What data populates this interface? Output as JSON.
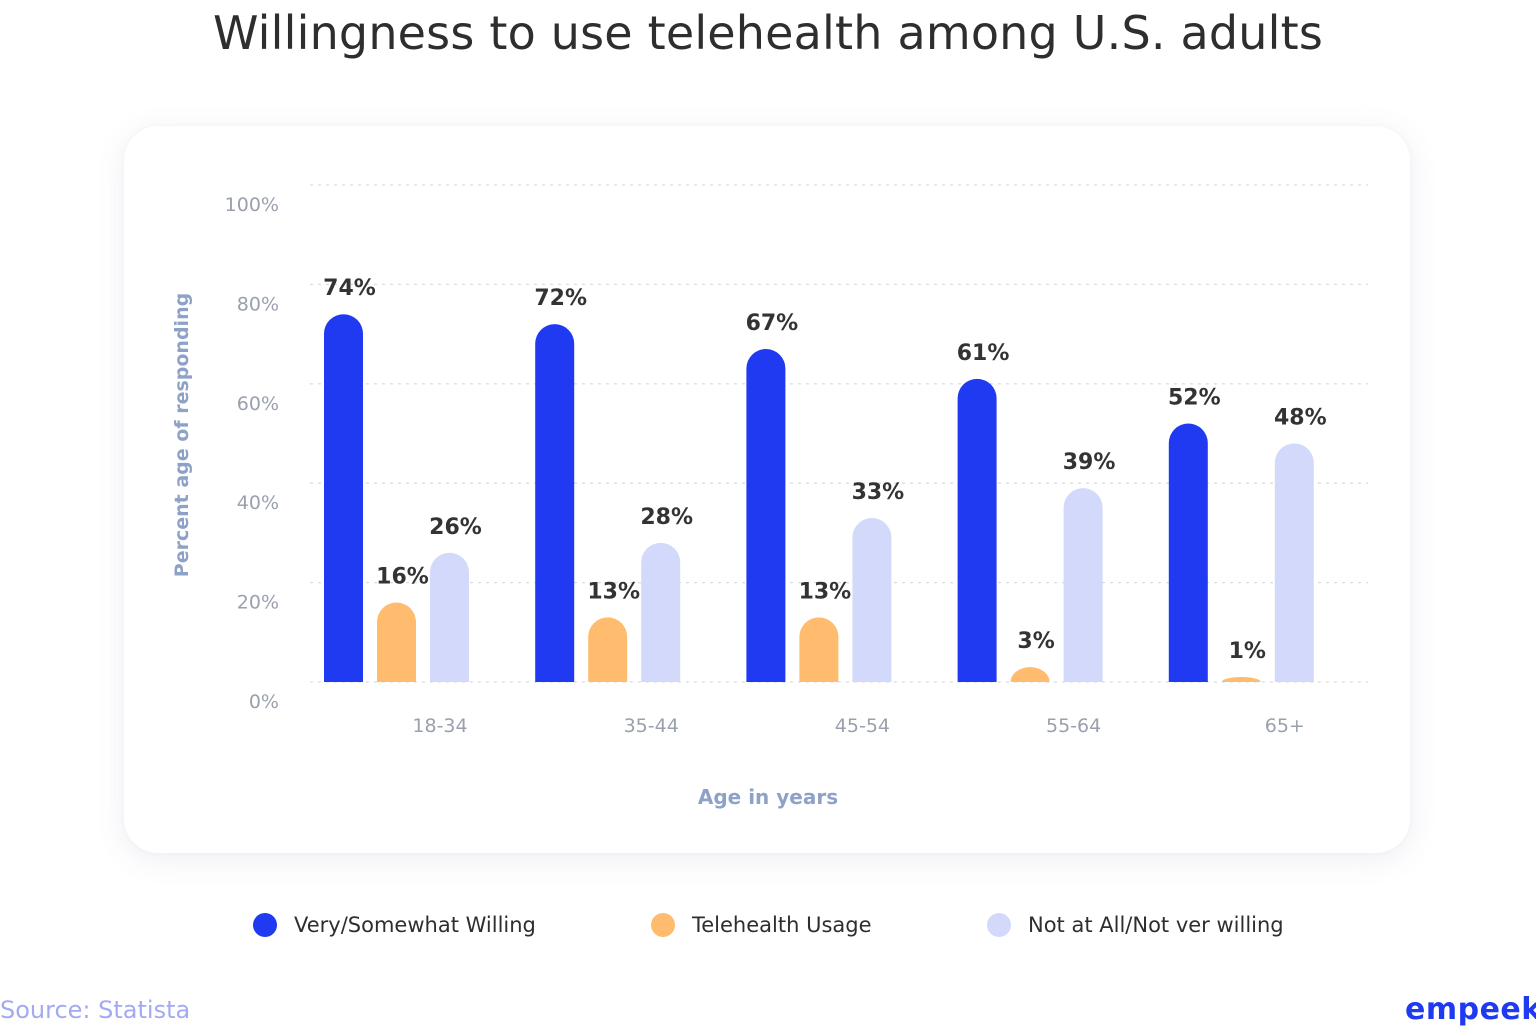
{
  "title": "Willingness to use telehealth among U.S. adults",
  "colors": {
    "willing": "#1f3af0",
    "usage": "#ffbb6e",
    "not_willing": "#d3d9fb",
    "axis_text": "#9aa0ad",
    "axis_title": "#8ea2c8",
    "value_label": "#333333"
  },
  "chart_data": {
    "type": "bar",
    "categories": [
      "18-34",
      "35-44",
      "45-54",
      "55-64",
      "65+"
    ],
    "series": [
      {
        "name": "Very/Somewhat Willing",
        "values": [
          74,
          72,
          67,
          61,
          52
        ],
        "labels": [
          "74%",
          "72%",
          "67%",
          "61%",
          "52%"
        ]
      },
      {
        "name": "Telehealth Usage",
        "values": [
          16,
          13,
          13,
          3,
          1
        ],
        "labels": [
          "16%",
          "13%",
          "13%",
          "3%",
          "1%"
        ]
      },
      {
        "name": "Not at All/Not ver willing",
        "values": [
          26,
          28,
          33,
          39,
          48
        ],
        "labels": [
          "26%",
          "28%",
          "33%",
          "39%",
          "48%"
        ]
      }
    ],
    "yticks": [
      "0%",
      "20%",
      "40%",
      "60%",
      "80%",
      "100%"
    ],
    "ytick_values": [
      0,
      20,
      40,
      60,
      80,
      100
    ],
    "ylim": [
      0,
      100
    ],
    "xlabel": "Age in years",
    "ylabel": "Percent age of responding",
    "grid": true,
    "legend_position": "bottom"
  },
  "footer": {
    "source": "Source: Statista",
    "brand": "empeek"
  }
}
